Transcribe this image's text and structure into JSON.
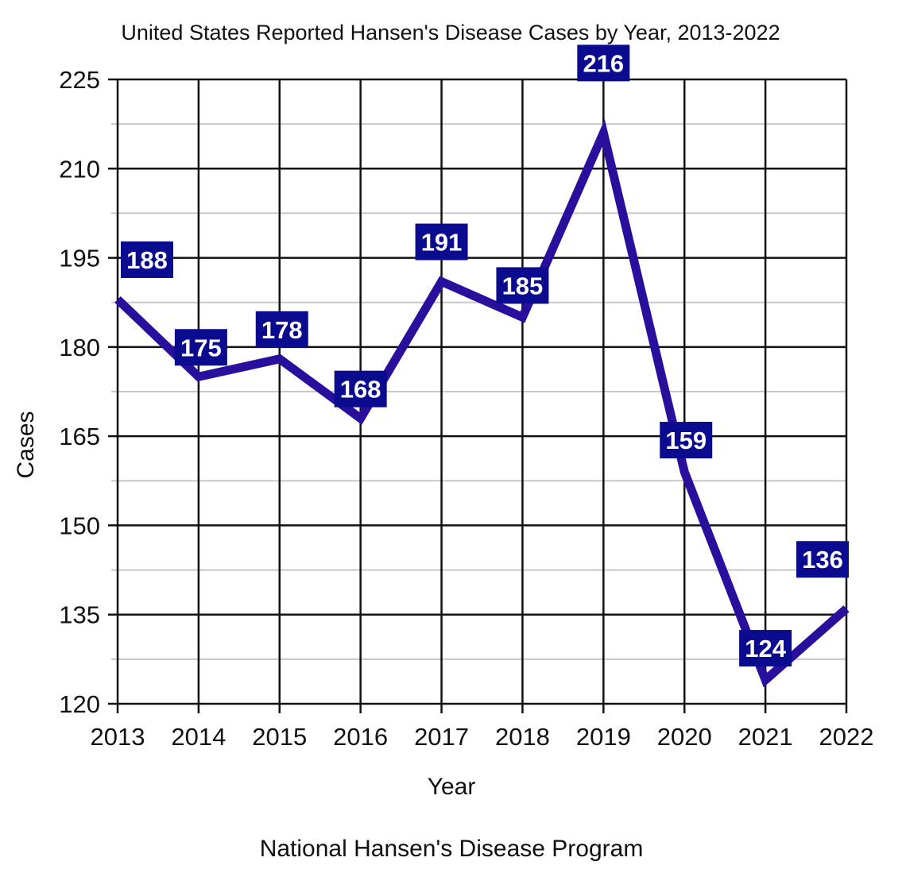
{
  "chart_data": {
    "type": "line",
    "title": "United States Reported Hansen's Disease Cases by Year, 2013-2022",
    "xlabel": "Year",
    "ylabel": "Cases",
    "source": "National Hansen's Disease Program",
    "categories": [
      "2013",
      "2014",
      "2015",
      "2016",
      "2017",
      "2018",
      "2019",
      "2020",
      "2021",
      "2022"
    ],
    "series": [
      {
        "name": "Cases",
        "values": [
          188,
          175,
          178,
          168,
          191,
          185,
          216,
          159,
          124,
          136
        ]
      }
    ],
    "ylim": [
      120,
      225
    ],
    "yticks": [
      120,
      135,
      150,
      165,
      180,
      195,
      210,
      225
    ],
    "minor_grid_step": 7.5,
    "grid": true,
    "legend": "none",
    "data_labels": true
  },
  "colors": {
    "line": "#2a0f9c",
    "label_box": "#0b0b8f",
    "label_text": "#ffffff",
    "major_grid": "#111111",
    "minor_grid": "#c8c8c8"
  }
}
